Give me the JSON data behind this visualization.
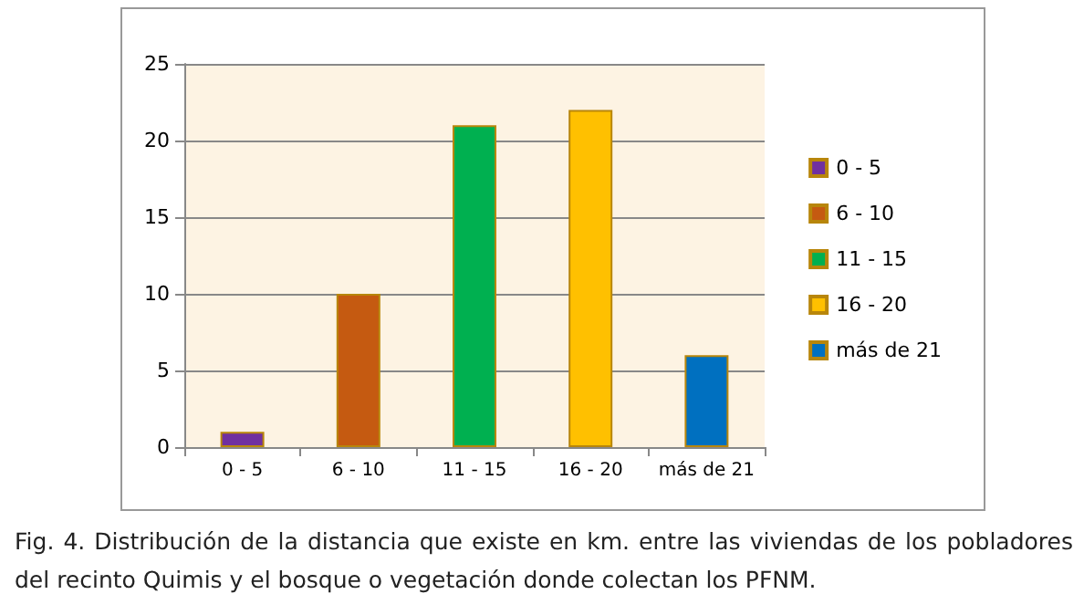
{
  "chart_data": {
    "type": "bar",
    "categories": [
      "0 - 5",
      "6 - 10",
      "11 - 15",
      "16 - 20",
      "más de 21"
    ],
    "series": [
      {
        "name": "0 - 5",
        "color": "#7030a0",
        "values": [
          1,
          null,
          null,
          null,
          null
        ]
      },
      {
        "name": "6 - 10",
        "color": "#c55a11",
        "values": [
          null,
          10,
          null,
          null,
          null
        ]
      },
      {
        "name": "11 - 15",
        "color": "#00b050",
        "values": [
          null,
          null,
          21,
          null,
          null
        ]
      },
      {
        "name": "16 - 20",
        "color": "#ffc000",
        "values": [
          null,
          null,
          null,
          22,
          null
        ]
      },
      {
        "name": "más de 21",
        "color": "#0070c0",
        "values": [
          null,
          null,
          null,
          null,
          6
        ]
      }
    ],
    "ylim": [
      0,
      25
    ],
    "yticks": [
      0,
      5,
      10,
      15,
      20,
      25
    ],
    "grid": "y",
    "legend": "right",
    "annotations": [
      "Fig. 4. Distribución de la distancia que existe en km. entre las viviendas de los pobladores del recinto Quimis y el bosque o vegetación donde colectan los PFNM."
    ]
  }
}
